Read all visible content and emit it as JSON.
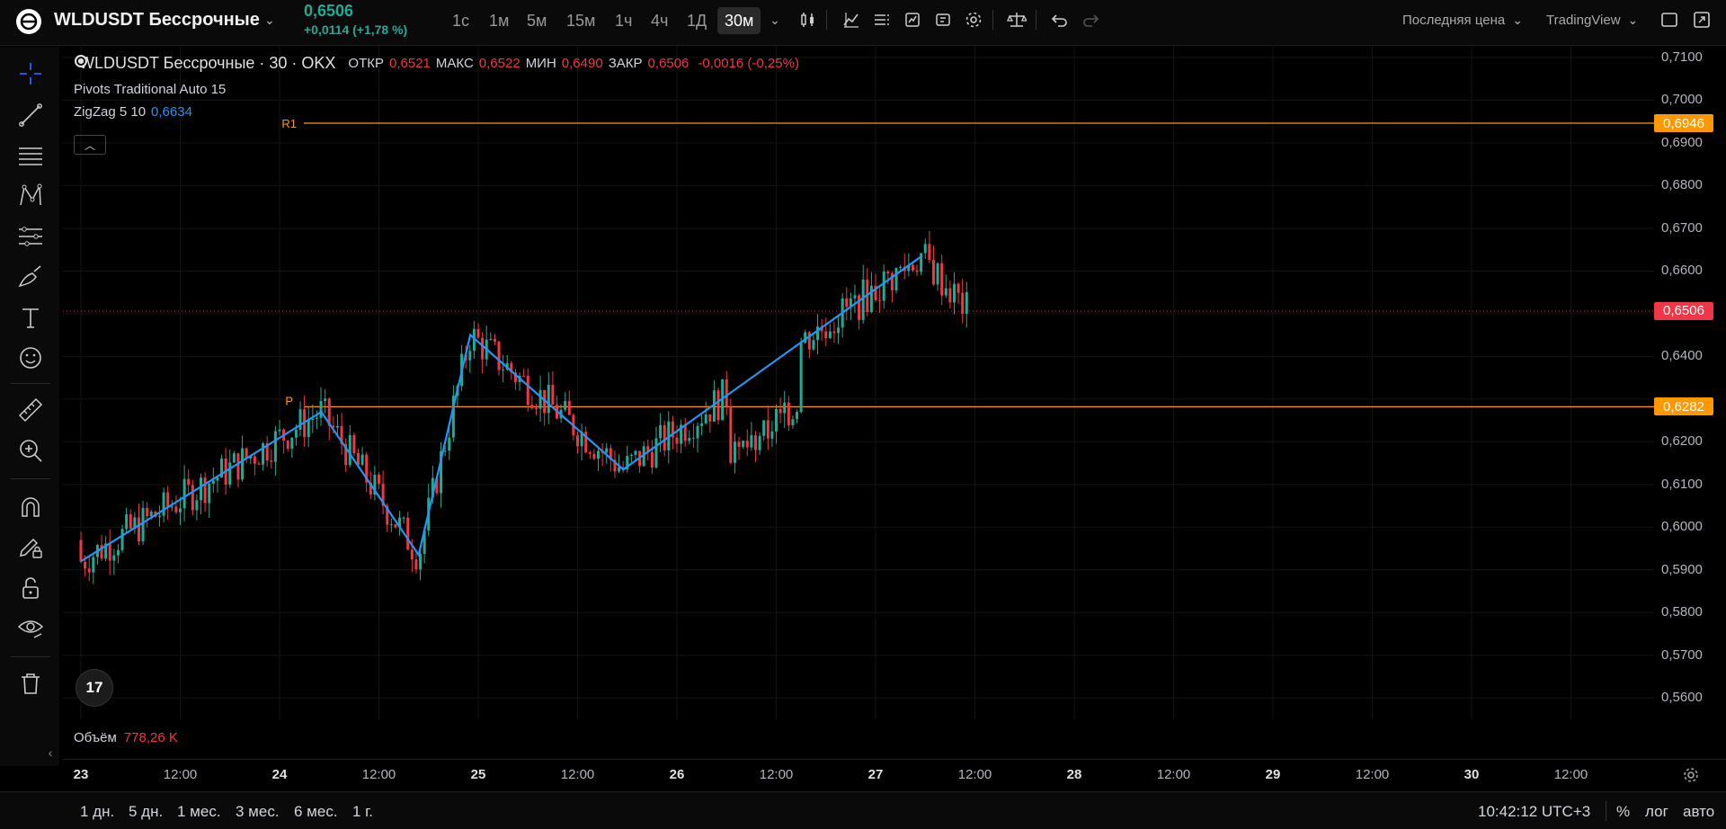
{
  "header": {
    "symbol": "WLDUSDT Бессрочные",
    "price": "0,6506",
    "change": "+0,0114 (+1,78 %)",
    "timeframes": [
      "1с",
      "1м",
      "5м",
      "15м",
      "1ч",
      "4ч",
      "1Д",
      "30м"
    ],
    "active_timeframe": "30м",
    "price_type": "Последняя цена",
    "chart_provider": "TradingView"
  },
  "legend": {
    "title": "WLDUSDT Бессрочные · 30 · OKX",
    "open_label": "ОТКР",
    "open": "0,6521",
    "high_label": "МАКС",
    "high": "0,6522",
    "low_label": "МИН",
    "low": "0,6490",
    "close_label": "ЗАКР",
    "close": "0,6506",
    "change": "-0,0016 (-0,25%)",
    "indicators": [
      {
        "name": "Pivots Traditional Auto 15",
        "value": ""
      },
      {
        "name": "ZigZag 5 10",
        "value": "0,6634"
      }
    ],
    "volume_label": "Объём",
    "volume_value": "778,26 K"
  },
  "price_axis": {
    "labels": [
      "0,7100",
      "0,7000",
      "0,6900",
      "0,6800",
      "0,6700",
      "0,6600",
      "0,6400",
      "0,6200",
      "0,6100",
      "0,6000",
      "0,5900",
      "0,5800",
      "0,5700",
      "0,5600"
    ],
    "tag_r1": "0,6946",
    "tag_last": "0,6506",
    "tag_p": "0,6282"
  },
  "pivots": {
    "r1_label": "R1",
    "p_label": "P"
  },
  "time_axis": [
    {
      "label": "23",
      "day": true
    },
    {
      "label": "12:00",
      "day": false
    },
    {
      "label": "24",
      "day": true
    },
    {
      "label": "12:00",
      "day": false
    },
    {
      "label": "25",
      "day": true
    },
    {
      "label": "12:00",
      "day": false
    },
    {
      "label": "26",
      "day": true
    },
    {
      "label": "12:00",
      "day": false
    },
    {
      "label": "27",
      "day": true
    },
    {
      "label": "12:00",
      "day": false
    },
    {
      "label": "28",
      "day": true
    },
    {
      "label": "12:00",
      "day": false
    },
    {
      "label": "29",
      "day": true
    },
    {
      "label": "12:00",
      "day": false
    },
    {
      "label": "30",
      "day": true
    },
    {
      "label": "12:00",
      "day": false
    }
  ],
  "bottom": {
    "ranges": [
      "1 дн.",
      "5 дн.",
      "1 мес.",
      "3 мес.",
      "6 мес.",
      "1 г."
    ],
    "clock": "10:42:12 UTC+3",
    "percent": "%",
    "log": "лог",
    "auto": "авто"
  },
  "tv_logo_text": "17",
  "chart_data": {
    "type": "candlestick",
    "ylim": [
      0.555,
      0.7125
    ],
    "last_price": 0.6506,
    "pivot_r1": 0.6946,
    "pivot_p": 0.6282,
    "zigzag": [
      {
        "day": 23.0,
        "price": 0.592
      },
      {
        "day": 24.21,
        "price": 0.627
      },
      {
        "day": 24.7,
        "price": 0.5935
      },
      {
        "day": 24.96,
        "price": 0.645
      },
      {
        "day": 25.73,
        "price": 0.6135
      },
      {
        "day": 27.23,
        "price": 0.6634
      }
    ],
    "colors": {
      "up": "#22ab94",
      "down": "#f23645",
      "zigzag": "#2196f3",
      "pivot": "#ff9800"
    }
  }
}
